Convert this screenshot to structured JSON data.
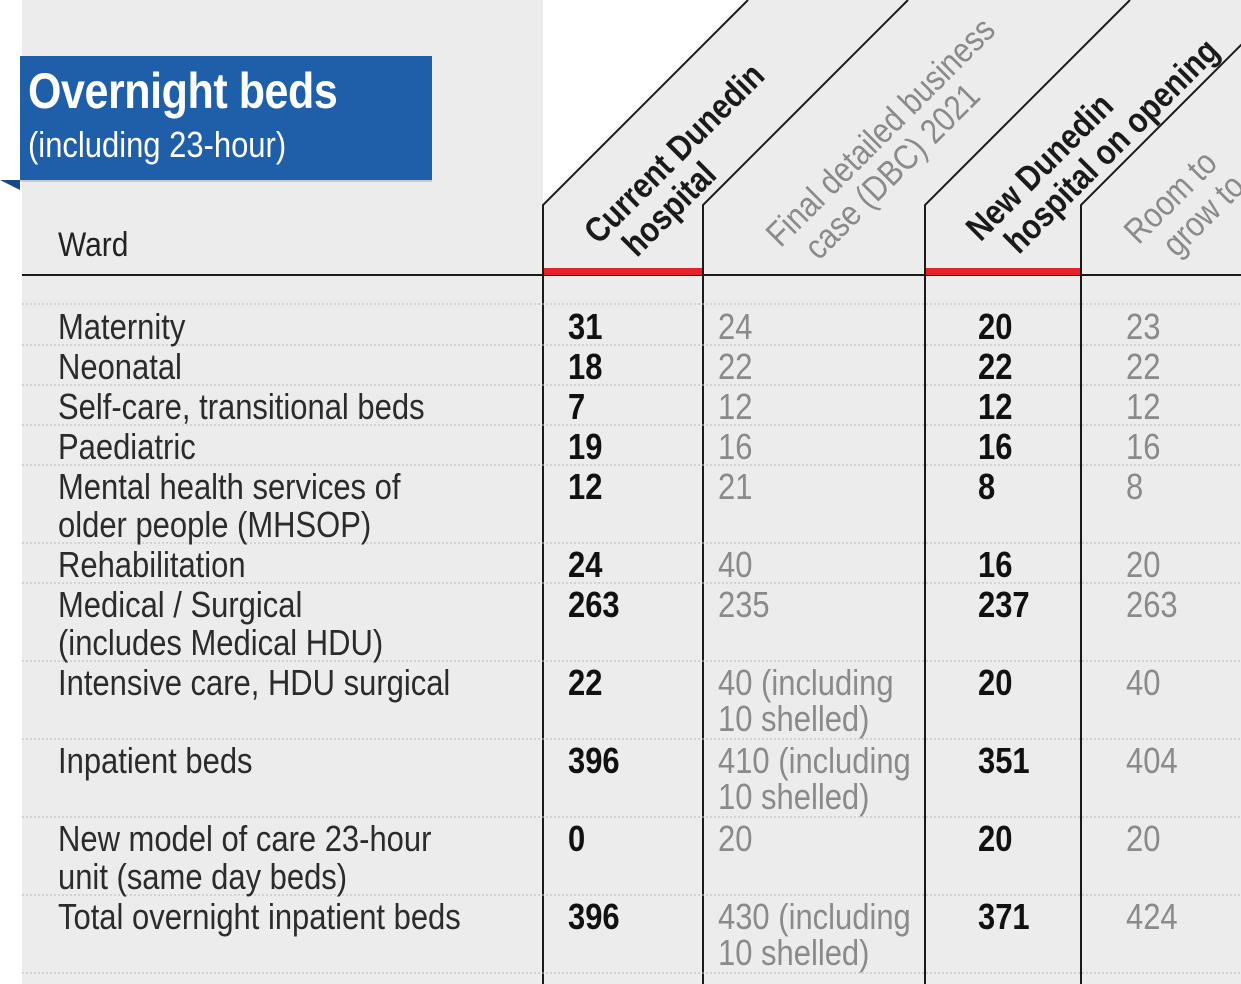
{
  "title": "Overnight beds",
  "subtitle": "(including 23-hour)",
  "row_header": "Ward",
  "columns": [
    {
      "label_lines": [
        "Current Dunedin",
        "hospital"
      ],
      "emphasis": "bold"
    },
    {
      "label_lines": [
        "Final detailed business",
        "case (DBC) 2021"
      ],
      "emphasis": "light"
    },
    {
      "label_lines": [
        "New Dunedin",
        "hospital on opening"
      ],
      "emphasis": "bold"
    },
    {
      "label_lines": [
        "Room to",
        "grow to"
      ],
      "emphasis": "light"
    }
  ],
  "colors": {
    "banner": "#1f5ea8",
    "accent_red": "#e3232b",
    "panel_grey": "#ececec",
    "light_text": "#8a8a8a"
  },
  "chart_data": {
    "type": "table",
    "title": "Overnight beds",
    "subtitle": "(including 23-hour)",
    "columns": [
      "Ward",
      "Current Dunedin hospital",
      "Final detailed business case (DBC) 2021",
      "New Dunedin hospital on opening",
      "Room to grow to"
    ],
    "rows": [
      {
        "ward": [
          "Maternity"
        ],
        "values": [
          [
            "31"
          ],
          [
            "24"
          ],
          [
            "20"
          ],
          [
            "23"
          ]
        ]
      },
      {
        "ward": [
          "Neonatal"
        ],
        "values": [
          [
            "18"
          ],
          [
            "22"
          ],
          [
            "22"
          ],
          [
            "22"
          ]
        ]
      },
      {
        "ward": [
          "Self-care, transitional beds"
        ],
        "values": [
          [
            "7"
          ],
          [
            "12"
          ],
          [
            "12"
          ],
          [
            "12"
          ]
        ]
      },
      {
        "ward": [
          "Paediatric"
        ],
        "values": [
          [
            "19"
          ],
          [
            "16"
          ],
          [
            "16"
          ],
          [
            "16"
          ]
        ]
      },
      {
        "ward": [
          "Mental health services of",
          "older people (MHSOP)"
        ],
        "values": [
          [
            "12"
          ],
          [
            "21"
          ],
          [
            "8"
          ],
          [
            "8"
          ]
        ]
      },
      {
        "ward": [
          "Rehabilitation"
        ],
        "values": [
          [
            "24"
          ],
          [
            "40"
          ],
          [
            "16"
          ],
          [
            "20"
          ]
        ]
      },
      {
        "ward": [
          "Medical / Surgical",
          "(includes Medical HDU)"
        ],
        "values": [
          [
            "263"
          ],
          [
            "235"
          ],
          [
            "237"
          ],
          [
            "263"
          ]
        ]
      },
      {
        "ward": [
          "Intensive care, HDU surgical"
        ],
        "values": [
          [
            "22"
          ],
          [
            "40 (including",
            "10 shelled)"
          ],
          [
            "20"
          ],
          [
            "40"
          ]
        ]
      },
      {
        "ward": [
          "Inpatient beds"
        ],
        "values": [
          [
            "396"
          ],
          [
            "410 (including",
            "10 shelled)"
          ],
          [
            "351"
          ],
          [
            "404"
          ]
        ]
      },
      {
        "ward": [
          "New model of care 23-hour",
          "unit (same day beds)"
        ],
        "values": [
          [
            "0"
          ],
          [
            "20"
          ],
          [
            "20"
          ],
          [
            "20"
          ]
        ]
      },
      {
        "ward": [
          "Total overnight inpatient beds"
        ],
        "values": [
          [
            "396"
          ],
          [
            "430 (including",
            "10 shelled)"
          ],
          [
            "371"
          ],
          [
            "424"
          ]
        ]
      }
    ]
  }
}
